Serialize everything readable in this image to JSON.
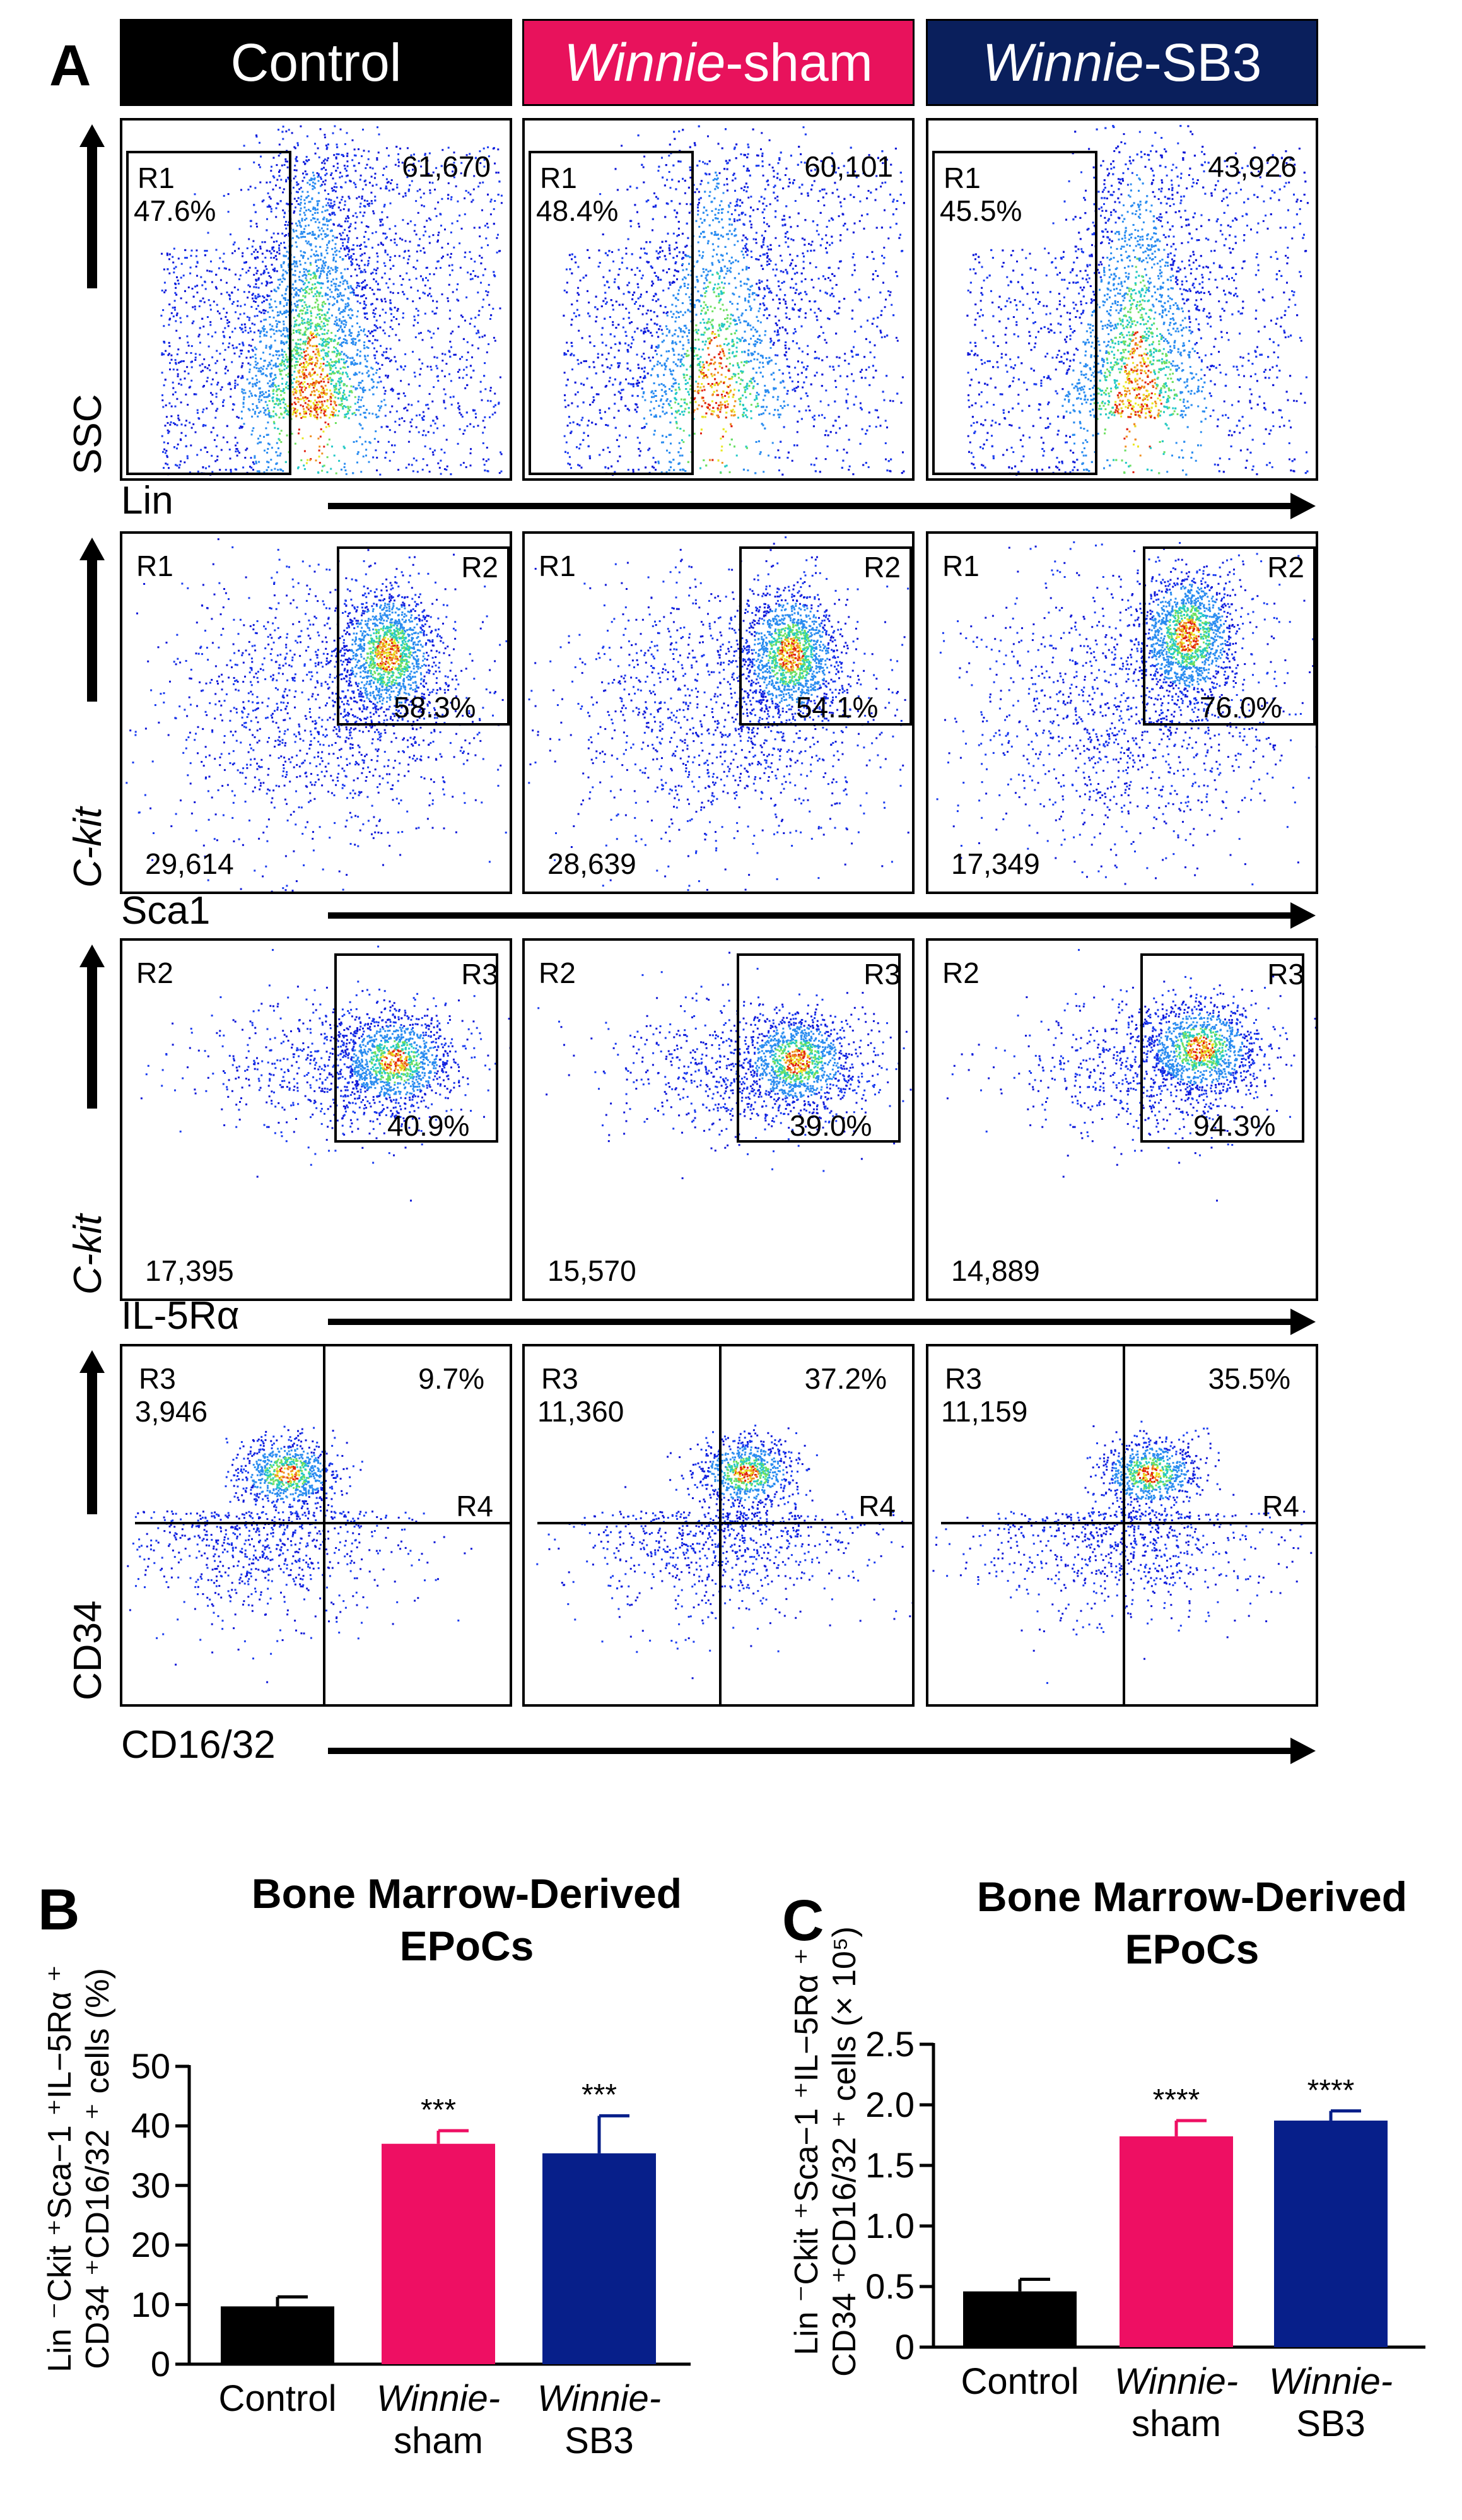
{
  "panelA": {
    "letter": "A",
    "groups": [
      {
        "pre": "",
        "em": "",
        "post": "Control",
        "color": "#000000"
      },
      {
        "pre": "",
        "em": "Winnie",
        "post": "-sham",
        "color": "#e8125c"
      },
      {
        "pre": "",
        "em": "Winnie",
        "post": "-SB3",
        "color": "#0a1f5c"
      }
    ],
    "rows": [
      {
        "ylabel": "SSC",
        "ylabel_italic": false,
        "xlabel": "Lin",
        "plots": [
          {
            "gate_in": "R1",
            "gate_out": "",
            "pct": "47.6%",
            "count": "61,670",
            "pct_pos": "tl",
            "count_pos": "tr",
            "density": [
              0.25,
              0.48,
              0.95
            ]
          },
          {
            "gate_in": "R1",
            "gate_out": "",
            "pct": "48.4%",
            "count": "60,101",
            "pct_pos": "tl",
            "count_pos": "tr",
            "density": [
              0.28,
              0.55,
              1.0
            ]
          },
          {
            "gate_in": "R1",
            "gate_out": "",
            "pct": "45.5%",
            "count": "43,926",
            "pct_pos": "tl",
            "count_pos": "tr",
            "density": [
              0.2,
              0.52,
              0.95
            ]
          }
        ]
      },
      {
        "ylabel": "C-kit",
        "ylabel_italic": true,
        "xlabel": "Sca1",
        "plots": [
          {
            "gate_in": "R1",
            "gate_out": "R2",
            "pct": "58.3%",
            "count": "29,614",
            "pct_pos": "br",
            "count_pos": "bl",
            "density": [
              0.1,
              0.4,
              0.8
            ]
          },
          {
            "gate_in": "R1",
            "gate_out": "R2",
            "pct": "54.1%",
            "count": "28,639",
            "pct_pos": "br",
            "count_pos": "bl",
            "density": [
              0.08,
              0.35,
              0.7
            ]
          },
          {
            "gate_in": "R1",
            "gate_out": "R2",
            "pct": "76.0%",
            "count": "17,349",
            "pct_pos": "br",
            "count_pos": "bl",
            "density": [
              0.08,
              0.35,
              0.7
            ]
          }
        ]
      },
      {
        "ylabel": "C-kit",
        "ylabel_italic": true,
        "xlabel": "IL-5Rα",
        "plots": [
          {
            "gate_in": "R2",
            "gate_out": "R3",
            "pct": "40.9%",
            "count": "17,395",
            "pct_pos": "br",
            "count_pos": "bl",
            "density": [
              0.1,
              0.4,
              0.6
            ]
          },
          {
            "gate_in": "R2",
            "gate_out": "R3",
            "pct": "39.0%",
            "count": "15,570",
            "pct_pos": "br",
            "count_pos": "bl",
            "density": [
              0.05,
              0.35,
              0.6
            ]
          },
          {
            "gate_in": "R2",
            "gate_out": "R3",
            "pct": "94.3%",
            "count": "14,889",
            "pct_pos": "br",
            "count_pos": "bl",
            "density": [
              0.05,
              0.35,
              0.6
            ]
          }
        ]
      },
      {
        "ylabel": "CD34",
        "ylabel_italic": false,
        "xlabel": "CD16/32",
        "plots": [
          {
            "gate_in": "R3",
            "gate_out": "R4",
            "pct": "9.7%",
            "count": "3,946",
            "pct_pos": "tr",
            "count_pos": "tl2",
            "density": [
              0.1,
              0.4,
              0.6
            ]
          },
          {
            "gate_in": "R3",
            "gate_out": "R4",
            "pct": "37.2%",
            "count": "11,360",
            "pct_pos": "tr",
            "count_pos": "tl2",
            "density": [
              0.05,
              0.3,
              0.55
            ]
          },
          {
            "gate_in": "R3",
            "gate_out": "R4",
            "pct": "35.5%",
            "count": "11,159",
            "pct_pos": "tr",
            "count_pos": "tl2",
            "density": [
              0.05,
              0.3,
              0.55
            ]
          }
        ]
      }
    ]
  },
  "chart_data": [
    {
      "type": "bar",
      "panel": "B",
      "title": "Bone Marrow-Derived EPoCs",
      "title_lines": [
        "Bone Marrow-Derived",
        "EPoCs"
      ],
      "ylabel_lines": [
        "Lin ⁻Ckit ⁺Sca−1 ⁺IL−5Rα ⁺",
        "CD34 ⁺CD16/32 ⁺ cells (%)"
      ],
      "categories": [
        "Control",
        "Winnie-sham",
        "Winnie-SB3"
      ],
      "category_lines": [
        [
          "Control",
          ""
        ],
        [
          "Winnie-",
          "sham"
        ],
        [
          "Winnie-",
          "SB3"
        ]
      ],
      "category_italic_first": [
        false,
        true,
        true
      ],
      "values": [
        9.7,
        37.0,
        35.4
      ],
      "errors": [
        1.6,
        2.2,
        6.3
      ],
      "significance": [
        "",
        "***",
        "***"
      ],
      "colors": [
        "#000000",
        "#ee0f63",
        "#071f8a"
      ],
      "ylim": [
        0,
        50
      ],
      "yticks": [
        "0",
        "10",
        "20",
        "30",
        "40",
        "50"
      ],
      "ytick_values": [
        0,
        10,
        20,
        30,
        40,
        50
      ]
    },
    {
      "type": "bar",
      "panel": "C",
      "title": "Bone Marrow-Derived EPoCs",
      "title_lines": [
        "Bone Marrow-Derived",
        "EPoCs"
      ],
      "ylabel_lines": [
        "Lin ⁻Ckit ⁺Sca−1 ⁺IL−5Rα ⁺",
        "CD34 ⁺CD16/32 ⁺ cells (× 10⁵)"
      ],
      "categories": [
        "Control",
        "Winnie-sham",
        "Winnie-SB3"
      ],
      "category_lines": [
        [
          "Control",
          ""
        ],
        [
          "Winnie-",
          "sham"
        ],
        [
          "Winnie-",
          "SB3"
        ]
      ],
      "category_italic_first": [
        false,
        true,
        true
      ],
      "values": [
        0.46,
        1.74,
        1.87
      ],
      "errors": [
        0.1,
        0.13,
        0.08
      ],
      "significance": [
        "",
        "****",
        "****"
      ],
      "colors": [
        "#000000",
        "#ee0f63",
        "#071f8a"
      ],
      "ylim": [
        0,
        2.5
      ],
      "yticks": [
        "0",
        "0.5",
        "1.0",
        "1.5",
        "2.0",
        "2.5"
      ],
      "ytick_values": [
        0,
        0.5,
        1.0,
        1.5,
        2.0,
        2.5
      ]
    }
  ]
}
